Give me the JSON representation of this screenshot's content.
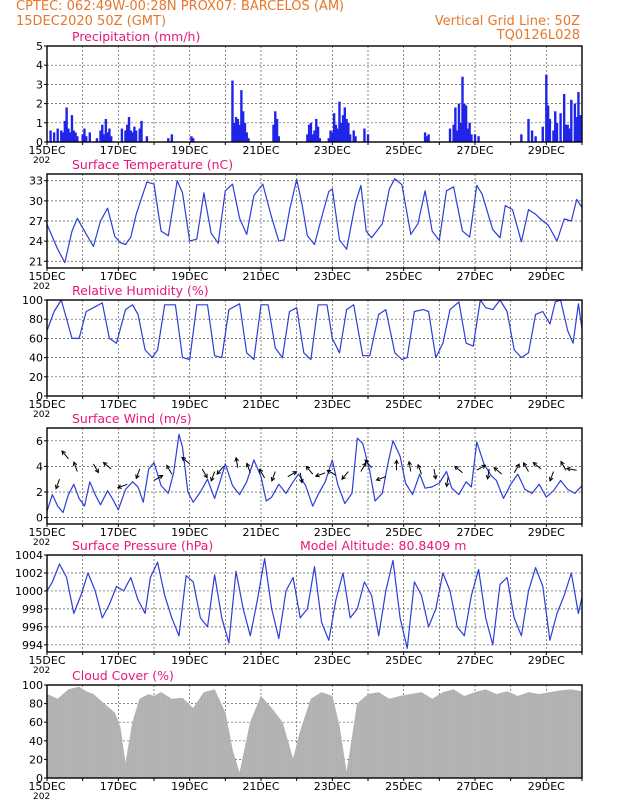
{
  "header": {
    "station": "CPTEC:   062:49W-00:28N   PROX07: BARCELOS (AM)",
    "date": "15DEC2020 50Z (GMT)",
    "grid_line": "Vertical Grid Line: 50Z",
    "code": "TQ0126L028"
  },
  "colors": {
    "header_text": "#e5782c",
    "title_text": "#e8167a",
    "series": "#2c3ed6",
    "precip_bar": "#1f24e8",
    "cloud_fill": "#b0b0b0"
  },
  "x_ticks": [
    "15DEC",
    "17DEC",
    "19DEC",
    "21DEC",
    "23DEC",
    "25DEC",
    "27DEC",
    "29DEC"
  ],
  "x_sublabel": "202",
  "chart_data": [
    {
      "id": "precip",
      "type": "bar",
      "title": "Precipitation (mm/h)",
      "ylim": [
        0,
        5
      ],
      "yticks": [
        0,
        1,
        2,
        3,
        4,
        5
      ],
      "x_day": [
        15.1,
        15.2,
        15.3,
        15.4,
        15.45,
        15.5,
        15.55,
        15.6,
        15.65,
        15.7,
        15.75,
        15.8,
        15.85,
        16.0,
        16.05,
        16.1,
        16.2,
        16.4,
        16.5,
        16.55,
        16.6,
        16.65,
        16.7,
        16.75,
        16.8,
        17.1,
        17.2,
        17.25,
        17.3,
        17.35,
        17.4,
        17.45,
        17.5,
        17.6,
        17.65,
        17.8,
        18.4,
        18.5,
        19.05,
        19.1,
        20.2,
        20.25,
        20.3,
        20.35,
        20.4,
        20.45,
        20.5,
        20.55,
        20.6,
        20.65,
        21.35,
        21.4,
        21.45,
        21.5,
        22.3,
        22.35,
        22.4,
        22.45,
        22.5,
        22.55,
        22.6,
        22.65,
        22.9,
        22.95,
        23.0,
        23.05,
        23.1,
        23.15,
        23.2,
        23.25,
        23.3,
        23.35,
        23.4,
        23.45,
        23.5,
        23.6,
        23.65,
        23.9,
        24.0,
        25.6,
        25.65,
        25.7,
        26.3,
        26.4,
        26.45,
        26.5,
        26.55,
        26.6,
        26.65,
        26.7,
        26.75,
        26.8,
        26.85,
        26.9,
        27.0,
        27.1,
        28.3,
        28.5,
        28.6,
        28.7,
        28.9,
        29.0,
        29.05,
        29.1,
        29.2,
        29.25,
        29.3,
        29.4,
        29.5,
        29.55,
        29.6,
        29.65,
        29.7,
        29.8,
        29.85,
        29.9,
        29.95
      ],
      "values": [
        0.6,
        0.5,
        0.7,
        0.6,
        0.5,
        1.1,
        1.8,
        0.7,
        0.5,
        1.4,
        0.6,
        0.5,
        0.3,
        0.4,
        0.7,
        0.3,
        0.5,
        0.2,
        0.6,
        0.9,
        0.4,
        1.2,
        0.5,
        0.7,
        0.3,
        0.7,
        0.6,
        0.9,
        1.3,
        0.6,
        0.5,
        0.8,
        0.6,
        0.7,
        1.1,
        0.3,
        0.2,
        0.4,
        0.3,
        0.2,
        3.2,
        1.0,
        1.3,
        1.2,
        0.9,
        2.7,
        1.6,
        1.0,
        0.5,
        0.2,
        0.9,
        1.6,
        1.2,
        0.3,
        0.4,
        0.9,
        1.0,
        0.4,
        0.6,
        1.2,
        0.8,
        0.2,
        0.2,
        0.6,
        0.5,
        1.5,
        0.9,
        0.7,
        2.1,
        1.0,
        1.4,
        1.8,
        1.2,
        1.0,
        0.4,
        0.6,
        0.3,
        0.7,
        0.4,
        0.5,
        0.3,
        0.4,
        0.7,
        0.9,
        1.8,
        0.6,
        2.0,
        1.0,
        3.4,
        2.0,
        1.9,
        0.7,
        1.0,
        0.4,
        0.4,
        0.3,
        0.4,
        1.2,
        0.6,
        0.3,
        0.8,
        3.5,
        1.9,
        1.2,
        0.6,
        1.6,
        1.0,
        1.5,
        2.5,
        0.9,
        0.9,
        0.7,
        2.2,
        2.0,
        1.3,
        2.6,
        1.4
      ]
    },
    {
      "id": "temp",
      "type": "line",
      "title": "Surface Temperature (nC)",
      "ylim": [
        20,
        34
      ],
      "yticks": [
        21,
        24,
        27,
        30,
        33
      ],
      "x_day": [
        15,
        15.3,
        15.5,
        15.7,
        15.85,
        16.05,
        16.3,
        16.5,
        16.7,
        16.9,
        17.05,
        17.2,
        17.35,
        17.5,
        17.7,
        17.8,
        18.0,
        18.2,
        18.4,
        18.65,
        18.8,
        19.0,
        19.2,
        19.4,
        19.6,
        19.8,
        20.0,
        20.2,
        20.4,
        20.6,
        20.8,
        21.05,
        21.3,
        21.5,
        21.65,
        21.8,
        22.0,
        22.15,
        22.3,
        22.5,
        22.75,
        22.9,
        23.0,
        23.2,
        23.4,
        23.65,
        23.8,
        23.95,
        24.1,
        24.4,
        24.6,
        24.75,
        24.95,
        25.2,
        25.4,
        25.6,
        25.8,
        26.0,
        26.2,
        26.4,
        26.65,
        26.85,
        27.05,
        27.2,
        27.5,
        27.7,
        27.85,
        28.05,
        28.3,
        28.5,
        28.7,
        28.9,
        29.05,
        29.3,
        29.5,
        29.7,
        29.85,
        30.0
      ],
      "values": [
        26.5,
        22.8,
        20.8,
        25.5,
        27.4,
        25.5,
        23.2,
        27.0,
        28.9,
        24.7,
        23.8,
        23.5,
        24.6,
        28.0,
        31.2,
        32.8,
        32.5,
        25.5,
        24.8,
        33.0,
        31.2,
        24.0,
        24.3,
        31.2,
        25.2,
        23.7,
        31.5,
        32.5,
        27.4,
        25.0,
        30.8,
        32.5,
        27.5,
        24.0,
        24.2,
        28.6,
        33.2,
        29.5,
        24.8,
        23.5,
        28.5,
        31.4,
        31.8,
        24.2,
        22.8,
        29.7,
        32.3,
        25.5,
        24.5,
        26.6,
        31.8,
        33.3,
        32.4,
        25.0,
        26.6,
        31.5,
        25.5,
        24.1,
        31.5,
        32.1,
        25.5,
        24.6,
        32.3,
        31.0,
        25.7,
        24.5,
        29.3,
        28.7,
        23.9,
        28.7,
        28.0,
        27.0,
        26.4,
        24.0,
        27.3,
        27.0,
        30.2,
        29.0
      ]
    },
    {
      "id": "rh",
      "type": "line",
      "title": "Relative Humidity (%)",
      "ylim": [
        0,
        100
      ],
      "yticks": [
        0,
        20,
        40,
        60,
        80,
        100
      ],
      "x_day": [
        15,
        15.2,
        15.4,
        15.7,
        15.9,
        16.1,
        16.3,
        16.55,
        16.75,
        16.95,
        17.2,
        17.4,
        17.55,
        17.75,
        17.95,
        18.1,
        18.3,
        18.6,
        18.8,
        19.0,
        19.2,
        19.5,
        19.7,
        19.9,
        20.1,
        20.4,
        20.6,
        20.8,
        21.0,
        21.2,
        21.4,
        21.6,
        21.8,
        22.0,
        22.2,
        22.4,
        22.6,
        22.85,
        23.0,
        23.2,
        23.4,
        23.6,
        23.85,
        24.05,
        24.3,
        24.5,
        24.75,
        24.95,
        25.1,
        25.3,
        25.55,
        25.7,
        25.9,
        26.1,
        26.3,
        26.55,
        26.75,
        26.95,
        27.15,
        27.3,
        27.5,
        27.7,
        27.9,
        28.1,
        28.3,
        28.5,
        28.7,
        28.9,
        29.1,
        29.25,
        29.4,
        29.6,
        29.75,
        29.9,
        30.0
      ],
      "values": [
        68,
        88,
        100,
        60,
        60,
        88,
        92,
        97,
        60,
        55,
        90,
        95,
        85,
        48,
        40,
        48,
        95,
        95,
        40,
        38,
        95,
        95,
        42,
        40,
        90,
        96,
        45,
        38,
        95,
        95,
        50,
        40,
        88,
        92,
        45,
        38,
        95,
        95,
        60,
        45,
        90,
        95,
        42,
        42,
        85,
        90,
        45,
        38,
        40,
        88,
        90,
        88,
        40,
        55,
        90,
        98,
        55,
        52,
        100,
        92,
        90,
        100,
        88,
        48,
        40,
        45,
        85,
        88,
        75,
        98,
        100,
        68,
        55,
        96,
        70
      ]
    },
    {
      "id": "wind",
      "type": "line",
      "title": "Surface Wind (m/s)",
      "ylim": [
        -0.5,
        7
      ],
      "yticks": [
        0,
        2,
        4,
        6
      ],
      "x_day": [
        15,
        15.15,
        15.3,
        15.45,
        15.6,
        15.75,
        15.9,
        16.05,
        16.2,
        16.35,
        16.5,
        16.7,
        16.85,
        17.0,
        17.2,
        17.4,
        17.55,
        17.7,
        17.85,
        18.0,
        18.2,
        18.4,
        18.55,
        18.7,
        18.8,
        18.95,
        19.1,
        19.3,
        19.5,
        19.7,
        19.85,
        20.0,
        20.2,
        20.4,
        20.6,
        20.8,
        21.0,
        21.15,
        21.3,
        21.5,
        21.7,
        21.9,
        22.05,
        22.25,
        22.45,
        22.6,
        22.8,
        23.0,
        23.15,
        23.35,
        23.55,
        23.7,
        23.85,
        24.05,
        24.2,
        24.4,
        24.55,
        24.7,
        24.9,
        25.05,
        25.25,
        25.45,
        25.6,
        25.8,
        26.0,
        26.2,
        26.35,
        26.55,
        26.75,
        26.9,
        27.05,
        27.25,
        27.45,
        27.6,
        27.8,
        28.0,
        28.2,
        28.4,
        28.6,
        28.8,
        29.0,
        29.2,
        29.4,
        29.6,
        29.8,
        30.0
      ],
      "values": [
        0.5,
        1.8,
        0.9,
        0.4,
        1.8,
        2.6,
        1.5,
        0.9,
        2.8,
        1.8,
        1.0,
        2.1,
        1.4,
        0.6,
        2.2,
        2.8,
        2.4,
        1.2,
        3.8,
        4.3,
        2.5,
        1.9,
        3.5,
        6.5,
        5.5,
        2.0,
        1.2,
        2.0,
        3.0,
        1.5,
        2.8,
        4.2,
        2.5,
        1.8,
        2.8,
        4.5,
        3.2,
        1.3,
        1.6,
        2.6,
        1.9,
        2.8,
        3.4,
        2.5,
        0.9,
        1.8,
        2.8,
        4.5,
        2.6,
        1.1,
        1.9,
        6.2,
        5.8,
        3.6,
        1.3,
        1.9,
        4.1,
        6.0,
        4.8,
        2.7,
        1.8,
        3.4,
        2.3,
        2.4,
        2.7,
        3.6,
        2.3,
        1.8,
        2.8,
        2.4,
        5.9,
        4.2,
        3.3,
        2.9,
        1.5,
        2.6,
        3.4,
        2.2,
        1.9,
        2.6,
        1.6,
        2.1,
        2.9,
        2.2,
        1.9,
        2.5
      ],
      "arrow_x_day": [
        15.35,
        15.6,
        15.85,
        16.3,
        16.8,
        17.25,
        17.6,
        18.0,
        18.5,
        19.0,
        19.35,
        19.7,
        19.95,
        20.35,
        20.7,
        21.1,
        21.4,
        21.75,
        22.1,
        22.45,
        22.8,
        23.1,
        23.45,
        23.8,
        24.1,
        24.5,
        24.8,
        25.2,
        25.5,
        25.85,
        26.25,
        26.65,
        27.05,
        27.4,
        27.75,
        28.1,
        28.5,
        28.85,
        29.2,
        29.55,
        29.85
      ],
      "arrow_y": [
        3.0,
        4.6,
        3.6,
        4.2,
        3.8,
        2.6,
        3.8,
        2.9,
        3.4,
        4.2,
        3.8,
        3.6,
        4.0,
        3.9,
        3.5,
        3.1,
        3.6,
        3.2,
        3.5,
        3.4,
        3.5,
        3.3,
        3.6,
        3.6,
        3.9,
        3.2,
        3.7,
        3.6,
        3.4,
        3.8,
        3.2,
        3.5,
        3.7,
        3.8,
        3.4,
        3.5,
        3.6,
        3.8,
        3.6,
        3.7,
        3.7
      ],
      "arrow_dir_deg": [
        250,
        130,
        110,
        300,
        140,
        200,
        250,
        30,
        120,
        140,
        300,
        250,
        230,
        100,
        110,
        120,
        250,
        30,
        280,
        130,
        200,
        150,
        230,
        60,
        130,
        200,
        90,
        100,
        110,
        280,
        260,
        140,
        30,
        260,
        140,
        60,
        120,
        140,
        250,
        120,
        170
      ]
    },
    {
      "id": "pres",
      "type": "line",
      "title": "Surface Pressure (hPa)",
      "annotation": "Model Altitude: 80.8409 m",
      "ylim": [
        993.2,
        1004
      ],
      "yticks": [
        994,
        996,
        998,
        1000,
        1002,
        1004
      ],
      "x_day": [
        15,
        15.15,
        15.35,
        15.55,
        15.75,
        15.95,
        16.15,
        16.35,
        16.55,
        16.75,
        16.95,
        17.15,
        17.35,
        17.55,
        17.75,
        17.9,
        18.1,
        18.3,
        18.5,
        18.7,
        18.9,
        19.1,
        19.3,
        19.5,
        19.7,
        19.9,
        20.1,
        20.3,
        20.5,
        20.7,
        20.9,
        21.1,
        21.3,
        21.5,
        21.7,
        21.9,
        22.1,
        22.3,
        22.5,
        22.7,
        22.9,
        23.1,
        23.3,
        23.5,
        23.7,
        23.9,
        24.1,
        24.3,
        24.5,
        24.7,
        24.9,
        25.1,
        25.3,
        25.5,
        25.7,
        25.9,
        26.1,
        26.3,
        26.5,
        26.7,
        26.9,
        27.1,
        27.3,
        27.5,
        27.7,
        27.9,
        28.1,
        28.3,
        28.5,
        28.7,
        28.9,
        29.1,
        29.3,
        29.5,
        29.7,
        29.9,
        30.0
      ],
      "values": [
        1000,
        1001,
        1003,
        1001.5,
        997.5,
        999.5,
        1002,
        1000,
        997,
        998.5,
        1000.5,
        1000,
        1001.5,
        999,
        997.5,
        1001.5,
        1003.2,
        999.5,
        997,
        995,
        1001.7,
        1001,
        997,
        996,
        1001.8,
        997,
        994.2,
        1002.2,
        998,
        995,
        999,
        1003.6,
        998,
        994.7,
        1000,
        1001.5,
        997,
        998,
        1002.7,
        996.5,
        994.5,
        999,
        1002,
        997,
        998,
        1001,
        999.5,
        995,
        1000,
        1003.4,
        997,
        993.6,
        1001,
        999.5,
        996,
        998,
        1002,
        1000,
        996,
        995,
        999.5,
        1002.4,
        997,
        994,
        1000.7,
        1001.5,
        997,
        995,
        1000,
        1002.6,
        1000.5,
        994.5,
        997.5,
        999.5,
        1002,
        997.5,
        999.3
      ]
    },
    {
      "id": "cloud",
      "type": "area",
      "title": "Cloud Cover (%)",
      "ylim": [
        0,
        100
      ],
      "yticks": [
        0,
        20,
        40,
        60,
        80,
        100
      ],
      "x_day": [
        15,
        15.3,
        15.6,
        15.9,
        16.1,
        16.3,
        16.6,
        16.9,
        17.05,
        17.2,
        17.4,
        17.6,
        17.85,
        18.0,
        18.2,
        18.5,
        18.8,
        19.1,
        19.4,
        19.7,
        20.0,
        20.2,
        20.4,
        20.7,
        21.0,
        21.3,
        21.6,
        21.9,
        22.1,
        22.4,
        22.7,
        23.0,
        23.2,
        23.4,
        23.7,
        24.0,
        24.3,
        24.6,
        24.9,
        25.2,
        25.5,
        25.8,
        26.1,
        26.4,
        26.7,
        27.0,
        27.3,
        27.6,
        27.9,
        28.2,
        28.5,
        28.8,
        29.1,
        29.4,
        29.7,
        30.0
      ],
      "values": [
        90,
        85,
        95,
        98,
        93,
        90,
        80,
        70,
        55,
        15,
        60,
        85,
        90,
        88,
        92,
        85,
        86,
        75,
        92,
        95,
        70,
        30,
        5,
        60,
        88,
        75,
        60,
        20,
        50,
        85,
        92,
        88,
        55,
        5,
        80,
        90,
        92,
        85,
        88,
        90,
        92,
        85,
        92,
        95,
        88,
        92,
        95,
        90,
        93,
        88,
        92,
        90,
        92,
        94,
        95,
        93
      ]
    }
  ]
}
